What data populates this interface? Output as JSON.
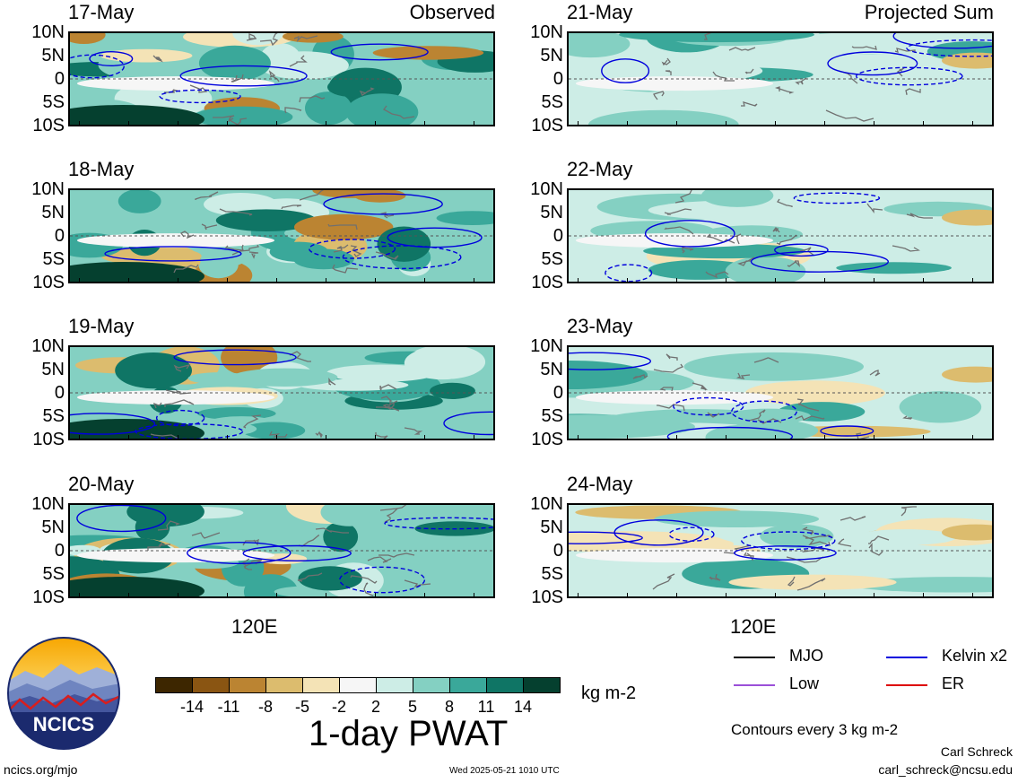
{
  "panels": [
    {
      "date": "17-May",
      "corner": "Observed"
    },
    {
      "date": "18-May",
      "corner": ""
    },
    {
      "date": "19-May",
      "corner": ""
    },
    {
      "date": "20-May",
      "corner": ""
    },
    {
      "date": "21-May",
      "corner": "Projected Sum"
    },
    {
      "date": "22-May",
      "corner": ""
    },
    {
      "date": "23-May",
      "corner": ""
    },
    {
      "date": "24-May",
      "corner": ""
    }
  ],
  "lat_labels": [
    "10N",
    "5N",
    "0",
    "5S",
    "10S"
  ],
  "x_tick_label": "120E",
  "colorbar": {
    "ticks": [
      "-14",
      "-11",
      "-8",
      "-5",
      "-2",
      "2",
      "5",
      "8",
      "11",
      "14"
    ],
    "colors": [
      "#3d2600",
      "#8a5512",
      "#bb8432",
      "#dcbc6e",
      "#f4e3b6",
      "#f6f6f6",
      "#cdede6",
      "#84d0c2",
      "#3aa89a",
      "#0f7565",
      "#05402f"
    ],
    "units": "kg m-2",
    "title": "1-day PWAT"
  },
  "legend": {
    "items": [
      {
        "label": "MJO",
        "color": "#000000"
      },
      {
        "label": "Kelvin x2",
        "color": "#0000dd"
      },
      {
        "label": "Low",
        "color": "#9b4fd8"
      },
      {
        "label": "ER",
        "color": "#dd0000"
      }
    ],
    "note": "Contours every 3 kg m-2"
  },
  "logo": {
    "text": "NCICS"
  },
  "footer": {
    "url": "ncics.org/mjo",
    "timestamp": "Wed 2025-05-21 1010 UTC",
    "author": "Carl Schreck",
    "email": "carl_schreck@ncsu.edu"
  }
}
